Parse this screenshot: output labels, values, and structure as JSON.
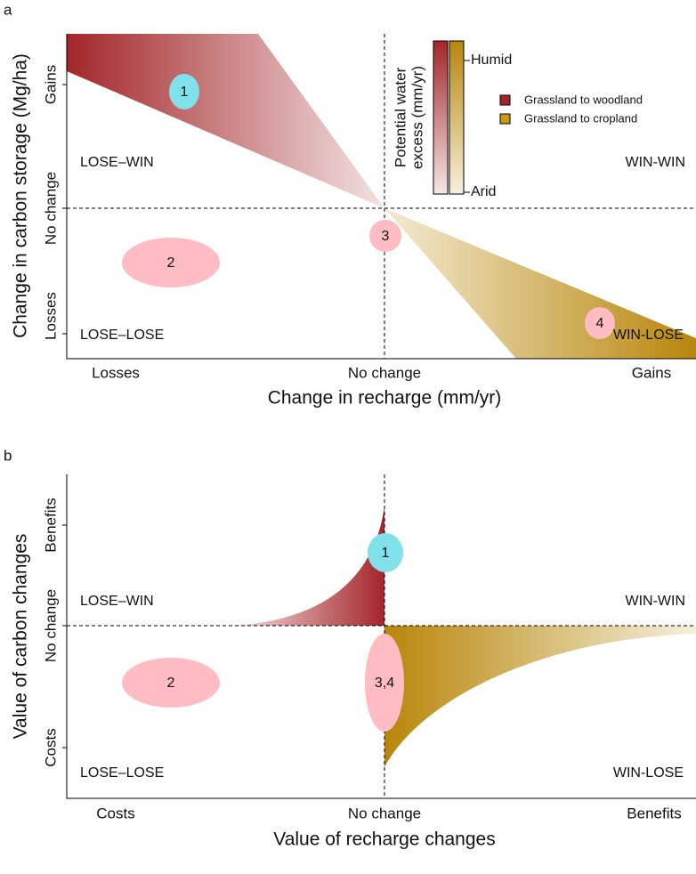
{
  "panels": [
    {
      "label": "a",
      "y_axis": {
        "title": "Change in carbon storage (Mg/ha)",
        "ticks": [
          "Gains",
          "No change",
          "Losses"
        ]
      },
      "x_axis": {
        "title": "Change in recharge (mm/yr)",
        "ticks": [
          "Losses",
          "No change",
          "Gains"
        ]
      },
      "quadrants": [
        "LOSE–WIN",
        "WIN-WIN",
        "LOSE–LOSE",
        "WIN-LOSE"
      ],
      "markers": [
        "1",
        "2",
        "3",
        "4"
      ],
      "colorbar": {
        "title": [
          "Potential water",
          "excess (mm/yr)"
        ],
        "high": "Humid",
        "low": "Arid"
      },
      "legend": [
        "Grassland to woodland",
        "Grassland to cropland"
      ]
    },
    {
      "label": "b",
      "y_axis": {
        "title": "Value of carbon changes",
        "ticks": [
          "Benefits",
          "No change",
          "Costs"
        ]
      },
      "x_axis": {
        "title": "Value of recharge changes",
        "ticks": [
          "Costs",
          "No change",
          "Benefits"
        ]
      },
      "quadrants": [
        "LOSE–WIN",
        "WIN-WIN",
        "LOSE–LOSE",
        "WIN-LOSE"
      ],
      "markers": [
        "1",
        "2",
        "3,4"
      ]
    }
  ]
}
